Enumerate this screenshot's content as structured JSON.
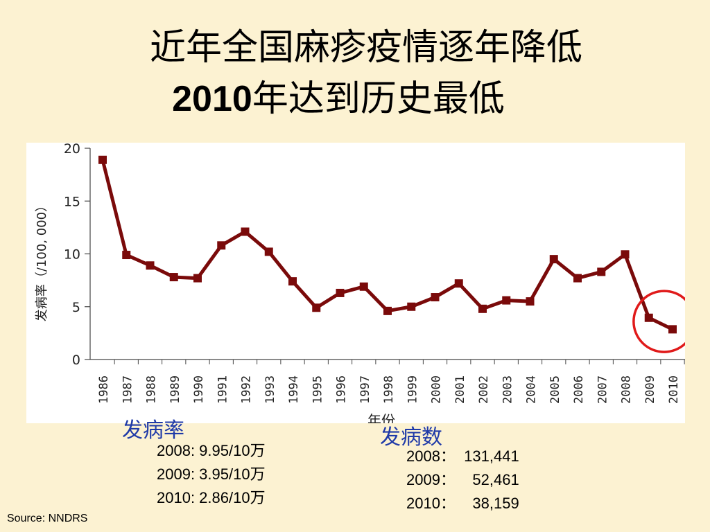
{
  "title": {
    "line1": "近年全国麻疹疫情逐年降低",
    "line2_year": "2010",
    "line2_rest": "年达到历史最低"
  },
  "chart_data": {
    "type": "line",
    "ylabel": "发病率（/100, 000）",
    "xlabel": "年份",
    "ylim": [
      0,
      20
    ],
    "yticks": [
      "0",
      "5",
      "10",
      "15",
      "20"
    ],
    "categories": [
      "1986",
      "1987",
      "1988",
      "1989",
      "1990",
      "1991",
      "1992",
      "1993",
      "1994",
      "1995",
      "1996",
      "1997",
      "1998",
      "1999",
      "2000",
      "2001",
      "2002",
      "2003",
      "2004",
      "2005",
      "2006",
      "2007",
      "2008",
      "2009",
      "2010"
    ],
    "series": [
      {
        "values": [
          18.9,
          9.9,
          8.9,
          7.8,
          7.7,
          10.8,
          12.1,
          10.2,
          7.4,
          4.9,
          6.3,
          6.9,
          4.6,
          5.0,
          5.9,
          7.2,
          4.8,
          5.6,
          5.5,
          9.5,
          7.7,
          8.3,
          9.95,
          3.95,
          2.86
        ],
        "color": "#7a0a0a"
      }
    ],
    "highlight": {
      "categories": [
        "2009",
        "2010"
      ],
      "color": "#e01a1a"
    },
    "grid": false
  },
  "incidence_rate": {
    "heading": "发病率",
    "lines": [
      "2008: 9.95/10万",
      "2009: 3.95/10万",
      "2010: 2.86/10万"
    ]
  },
  "case_count": {
    "heading": "发病数",
    "lines": [
      "2008：  131,441",
      "2009：    52,461",
      "2010：    38,159"
    ]
  },
  "source": "Source: NNDRS"
}
